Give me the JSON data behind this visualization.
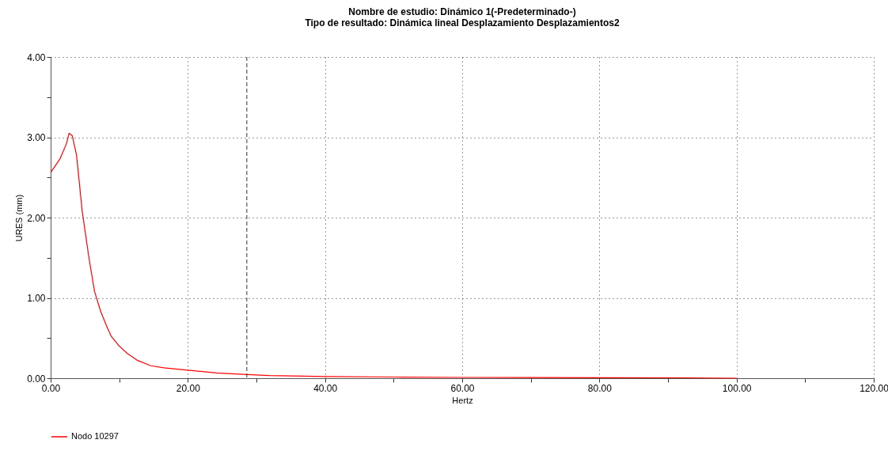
{
  "chart_data": {
    "type": "line",
    "title": "Nombre de estudio: Dinámico 1(-Predeterminado-)",
    "subtitle": "Tipo de resultado: Dinámica lineal Desplazamiento Desplazamientos2",
    "xlabel": "Hertz",
    "ylabel": "URES (mm)",
    "x": [
      0,
      1.35,
      2.3,
      2.7,
      3.15,
      3.77,
      4.6,
      5.6,
      6.4,
      7.3,
      8.3,
      8.85,
      10.0,
      11.15,
      12.7,
      14.6,
      16.5,
      20,
      24.2,
      28.65,
      31.9,
      40,
      50,
      60,
      70,
      80,
      92,
      100
    ],
    "series": [
      {
        "name": "Nodo 10297",
        "color": "#ff0000",
        "values": [
          2.56,
          2.73,
          2.92,
          3.05,
          3.02,
          2.78,
          2.08,
          1.49,
          1.08,
          0.83,
          0.62,
          0.52,
          0.4,
          0.31,
          0.22,
          0.155,
          0.13,
          0.1,
          0.066,
          0.046,
          0.033,
          0.02,
          0.015,
          0.01,
          0.008,
          0.006,
          0.005,
          0.0
        ]
      }
    ],
    "xlim": [
      0,
      120
    ],
    "xticks": [
      {
        "value": 0,
        "label": "0.00"
      },
      {
        "value": 10,
        "label": null
      },
      {
        "value": 20,
        "label": "20.00"
      },
      {
        "value": 30,
        "label": null
      },
      {
        "value": 40,
        "label": "40.00"
      },
      {
        "value": 50,
        "label": null
      },
      {
        "value": 60,
        "label": "60.00"
      },
      {
        "value": 70,
        "label": null
      },
      {
        "value": 80,
        "label": "80.00"
      },
      {
        "value": 90,
        "label": null
      },
      {
        "value": 100,
        "label": "100.00"
      },
      {
        "value": 110,
        "label": null
      },
      {
        "value": 120,
        "label": "120.00"
      }
    ],
    "ylim": [
      0,
      4
    ],
    "yticks": [
      {
        "value": 0,
        "label": "0.00"
      },
      {
        "value": 0.5,
        "label": null
      },
      {
        "value": 1,
        "label": "1.00"
      },
      {
        "value": 1.5,
        "label": null
      },
      {
        "value": 2,
        "label": "2.00"
      },
      {
        "value": 2.5,
        "label": null
      },
      {
        "value": 3,
        "label": "3.00"
      },
      {
        "value": 3.5,
        "label": null
      },
      {
        "value": 4,
        "label": "4.00"
      }
    ],
    "ref_lines": [
      {
        "axis": "x",
        "value": 28.6,
        "color": "#333333",
        "line_style": "dashed"
      }
    ],
    "grid": true,
    "legend": "bottom",
    "marker": "none",
    "line_style": "solid"
  }
}
